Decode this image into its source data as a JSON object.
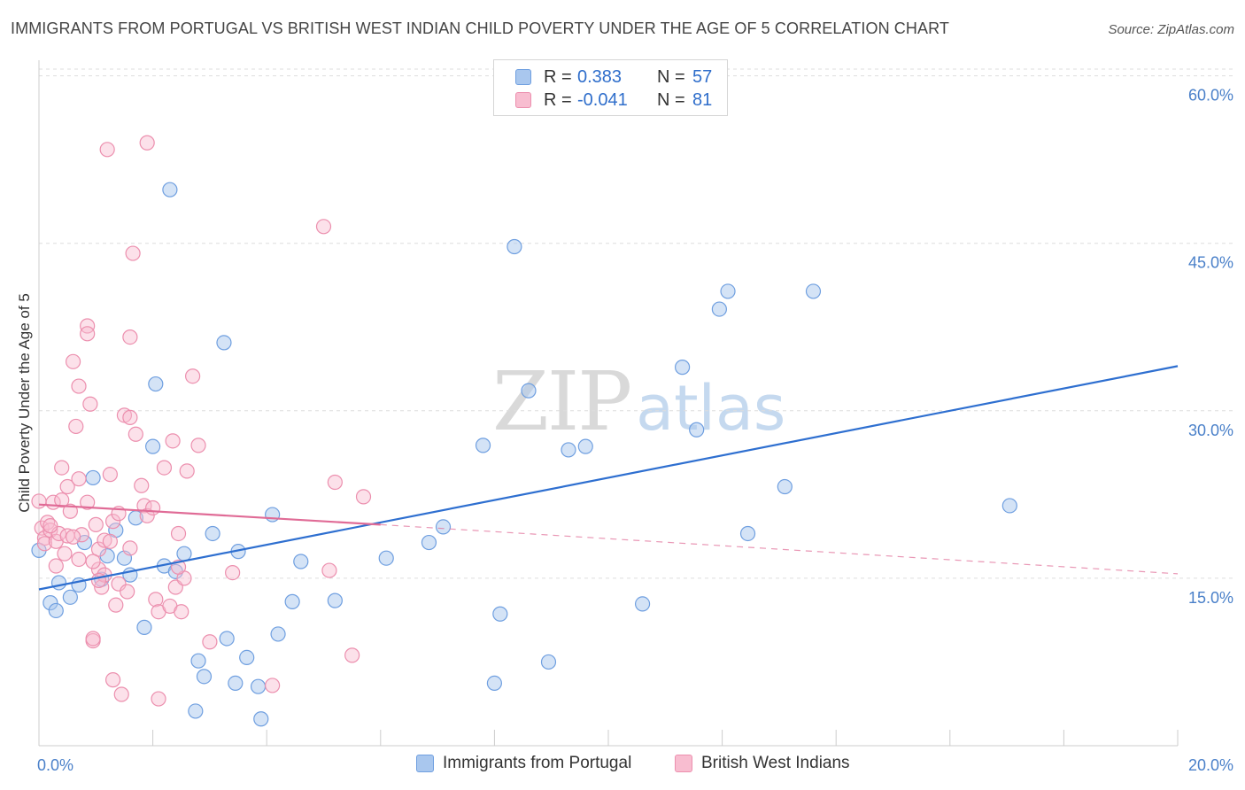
{
  "title": "IMMIGRANTS FROM PORTUGAL VS BRITISH WEST INDIAN CHILD POVERTY UNDER THE AGE OF 5 CORRELATION CHART",
  "source": "Source: ZipAtlas.com",
  "watermark": {
    "zip": "ZIP",
    "atlas": "atlas"
  },
  "legend": {
    "rows": [
      {
        "r_label": "R =",
        "r_value": "0.383",
        "n_label": "N =",
        "n_value": "57",
        "color": "#a9c7ee",
        "border": "#6f9fe0"
      },
      {
        "r_label": "R =",
        "r_value": "-0.041",
        "n_label": "N =",
        "n_value": "81",
        "color": "#f8bdd0",
        "border": "#ec8fae"
      }
    ],
    "series_names": [
      "Immigrants from Portugal",
      "British West Indians"
    ]
  },
  "colors": {
    "blue_fill": "#a9c7ee",
    "blue_stroke": "#6f9fe0",
    "blue_line": "#2e6fd0",
    "pink_fill": "#f8bdd0",
    "pink_stroke": "#ec8fae",
    "pink_line": "#e06b96",
    "grid": "#dddddd",
    "axis_text": "#4a80c9"
  },
  "chart_data": {
    "type": "scatter",
    "xlabel": "",
    "ylabel": "Child Poverty Under the Age of 5",
    "xlim": [
      0,
      20
    ],
    "ylim": [
      0,
      61
    ],
    "y_ticks": [
      15,
      30,
      45,
      60
    ],
    "y_tick_labels": [
      "15.0%",
      "30.0%",
      "45.0%",
      "60.0%"
    ],
    "x_tick_labels": [
      "0.0%",
      "20.0%"
    ],
    "grid": true,
    "legend_position": "top-center",
    "series": [
      {
        "name": "Immigrants from Portugal",
        "trend": {
          "x": [
            0,
            20
          ],
          "y": [
            14.0,
            34.0
          ]
        },
        "points": [
          [
            0.0,
            17.5
          ],
          [
            0.2,
            12.8
          ],
          [
            0.3,
            12.1
          ],
          [
            0.35,
            14.6
          ],
          [
            0.55,
            13.3
          ],
          [
            0.7,
            14.4
          ],
          [
            0.8,
            18.2
          ],
          [
            0.95,
            24.0
          ],
          [
            1.1,
            14.9
          ],
          [
            1.2,
            17.0
          ],
          [
            1.35,
            19.3
          ],
          [
            1.5,
            16.8
          ],
          [
            1.6,
            15.3
          ],
          [
            1.7,
            20.4
          ],
          [
            1.85,
            10.6
          ],
          [
            2.0,
            26.8
          ],
          [
            2.05,
            32.4
          ],
          [
            2.2,
            16.1
          ],
          [
            2.3,
            49.8
          ],
          [
            2.4,
            15.6
          ],
          [
            2.55,
            17.2
          ],
          [
            2.8,
            7.6
          ],
          [
            2.9,
            6.2
          ],
          [
            3.05,
            19.0
          ],
          [
            2.75,
            3.1
          ],
          [
            3.25,
            36.1
          ],
          [
            3.3,
            9.6
          ],
          [
            3.45,
            5.6
          ],
          [
            3.5,
            17.4
          ],
          [
            3.65,
            7.9
          ],
          [
            3.85,
            5.3
          ],
          [
            3.9,
            2.4
          ],
          [
            4.1,
            20.7
          ],
          [
            4.2,
            10.0
          ],
          [
            4.45,
            12.9
          ],
          [
            4.6,
            16.5
          ],
          [
            5.2,
            13.0
          ],
          [
            6.1,
            16.8
          ],
          [
            6.85,
            18.2
          ],
          [
            7.1,
            19.6
          ],
          [
            7.8,
            26.9
          ],
          [
            8.0,
            5.6
          ],
          [
            8.1,
            11.8
          ],
          [
            8.35,
            44.7
          ],
          [
            8.6,
            31.8
          ],
          [
            8.95,
            7.5
          ],
          [
            9.3,
            26.5
          ],
          [
            9.6,
            26.8
          ],
          [
            10.6,
            12.7
          ],
          [
            11.3,
            33.9
          ],
          [
            11.55,
            28.3
          ],
          [
            11.95,
            39.1
          ],
          [
            12.1,
            40.7
          ],
          [
            12.45,
            19.0
          ],
          [
            13.1,
            23.2
          ],
          [
            13.6,
            40.7
          ],
          [
            17.05,
            21.5
          ]
        ]
      },
      {
        "name": "British West Indians",
        "trend": {
          "x": [
            0,
            6
          ],
          "y": [
            21.6,
            19.8
          ]
        },
        "trend_dashed": {
          "x": [
            6,
            20
          ],
          "y": [
            19.8,
            15.4
          ]
        },
        "points": [
          [
            0.0,
            21.9
          ],
          [
            0.05,
            19.5
          ],
          [
            0.1,
            18.6
          ],
          [
            0.1,
            18.1
          ],
          [
            0.15,
            20.0
          ],
          [
            0.2,
            19.3
          ],
          [
            0.25,
            21.8
          ],
          [
            0.3,
            18.3
          ],
          [
            0.3,
            16.1
          ],
          [
            0.35,
            19.0
          ],
          [
            0.4,
            24.9
          ],
          [
            0.4,
            22.0
          ],
          [
            0.45,
            17.2
          ],
          [
            0.5,
            18.8
          ],
          [
            0.5,
            23.2
          ],
          [
            0.55,
            21.0
          ],
          [
            0.6,
            34.4
          ],
          [
            0.65,
            28.6
          ],
          [
            0.7,
            32.2
          ],
          [
            0.7,
            23.9
          ],
          [
            0.7,
            16.7
          ],
          [
            0.75,
            18.9
          ],
          [
            0.85,
            37.6
          ],
          [
            0.85,
            36.9
          ],
          [
            0.85,
            21.8
          ],
          [
            0.9,
            30.6
          ],
          [
            0.95,
            9.4
          ],
          [
            0.95,
            9.6
          ],
          [
            1.0,
            19.8
          ],
          [
            1.05,
            17.6
          ],
          [
            1.05,
            15.8
          ],
          [
            1.1,
            14.2
          ],
          [
            1.15,
            18.4
          ],
          [
            1.15,
            15.3
          ],
          [
            1.2,
            53.4
          ],
          [
            1.25,
            18.3
          ],
          [
            1.25,
            24.3
          ],
          [
            1.3,
            20.1
          ],
          [
            1.3,
            5.9
          ],
          [
            1.35,
            12.6
          ],
          [
            1.4,
            14.5
          ],
          [
            1.45,
            4.6
          ],
          [
            1.5,
            29.6
          ],
          [
            1.55,
            13.8
          ],
          [
            1.6,
            36.6
          ],
          [
            1.6,
            17.7
          ],
          [
            1.65,
            44.1
          ],
          [
            1.7,
            27.9
          ],
          [
            1.8,
            23.3
          ],
          [
            1.85,
            21.5
          ],
          [
            1.9,
            54.0
          ],
          [
            1.9,
            20.6
          ],
          [
            2.05,
            13.1
          ],
          [
            2.1,
            12.0
          ],
          [
            2.1,
            4.2
          ],
          [
            2.2,
            24.9
          ],
          [
            2.3,
            12.5
          ],
          [
            2.35,
            27.3
          ],
          [
            2.4,
            14.2
          ],
          [
            2.45,
            19.0
          ],
          [
            2.5,
            12.0
          ],
          [
            2.55,
            15.0
          ],
          [
            2.6,
            24.6
          ],
          [
            2.7,
            33.1
          ],
          [
            2.8,
            26.9
          ],
          [
            3.0,
            9.3
          ],
          [
            3.4,
            15.5
          ],
          [
            4.1,
            5.4
          ],
          [
            5.0,
            46.5
          ],
          [
            5.1,
            15.7
          ],
          [
            5.2,
            23.6
          ],
          [
            5.5,
            8.1
          ],
          [
            5.7,
            22.3
          ],
          [
            0.2,
            19.7
          ],
          [
            0.6,
            18.7
          ],
          [
            1.05,
            14.8
          ],
          [
            2.0,
            21.3
          ],
          [
            0.95,
            16.5
          ],
          [
            1.4,
            20.8
          ],
          [
            2.45,
            16.0
          ],
          [
            1.6,
            29.4
          ]
        ]
      }
    ]
  }
}
